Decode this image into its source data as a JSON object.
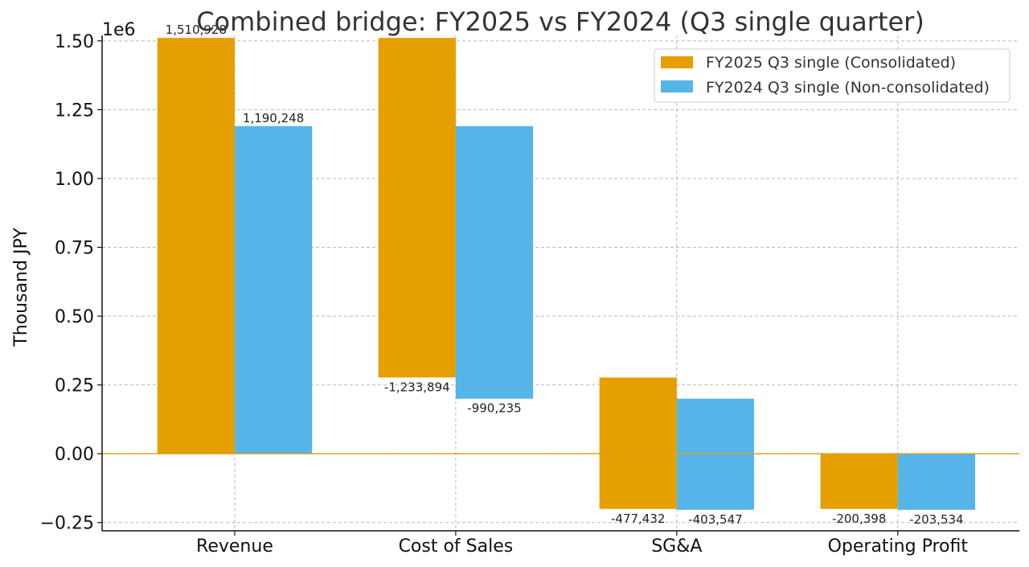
{
  "chart_data": {
    "type": "bar",
    "title": "Combined bridge: FY2025 vs FY2024 (Q3 single quarter)",
    "xlabel": "",
    "ylabel": "Thousand JPY",
    "axis_offset_label": "1e6",
    "categories": [
      "Revenue",
      "Cost of Sales",
      "SG&A",
      "Operating Profit"
    ],
    "series": [
      {
        "name": "FY2025 Q3 single (Consolidated)",
        "color": "#E69F00",
        "bars": [
          {
            "start": 0,
            "end": 1510928,
            "label": "1,510,928"
          },
          {
            "start": 1510928,
            "end": 277034,
            "label": "-1,233,894"
          },
          {
            "start": 277034,
            "end": -200398,
            "label": "-477,432"
          },
          {
            "start": 0,
            "end": -200398,
            "label": "-200,398"
          }
        ]
      },
      {
        "name": "FY2024 Q3 single (Non-consolidated)",
        "color": "#56B4E9",
        "bars": [
          {
            "start": 0,
            "end": 1190248,
            "label": "1,190,248"
          },
          {
            "start": 1190248,
            "end": 200013,
            "label": "-990,235"
          },
          {
            "start": 200013,
            "end": -203534,
            "label": "-403,547"
          },
          {
            "start": 0,
            "end": -203534,
            "label": "-203,534"
          }
        ]
      }
    ],
    "yticks": [
      -250000,
      0,
      250000,
      500000,
      750000,
      1000000,
      1250000,
      1500000
    ],
    "ytick_labels": [
      "−0.25",
      "0.00",
      "0.25",
      "0.50",
      "0.75",
      "1.00",
      "1.25",
      "1.50"
    ],
    "ylim": [
      -280000,
      1520000
    ],
    "zero_line_color": "#DAA520",
    "grid": true,
    "legend_position": "top-right"
  }
}
